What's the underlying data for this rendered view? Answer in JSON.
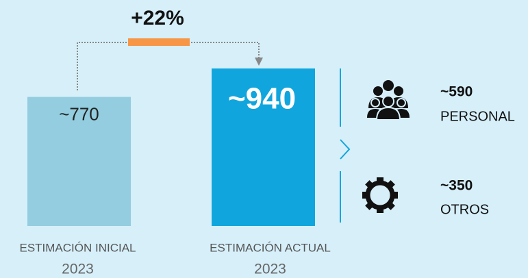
{
  "chart_data": {
    "type": "bar",
    "annotation": "+22%",
    "categories": [
      "ESTIMACIÓN INICIAL",
      "ESTIMACIÓN ACTUAL"
    ],
    "years": [
      "2023",
      "2023"
    ],
    "values": [
      770,
      940
    ],
    "value_labels": [
      "~770",
      "~940"
    ],
    "colors": [
      "#93cddf",
      "#10a6dd"
    ],
    "breakdown": [
      {
        "name": "PERSONAL",
        "value": 590,
        "value_label": "~590"
      },
      {
        "name": "OTROS",
        "value": 350,
        "value_label": "~350"
      }
    ]
  }
}
